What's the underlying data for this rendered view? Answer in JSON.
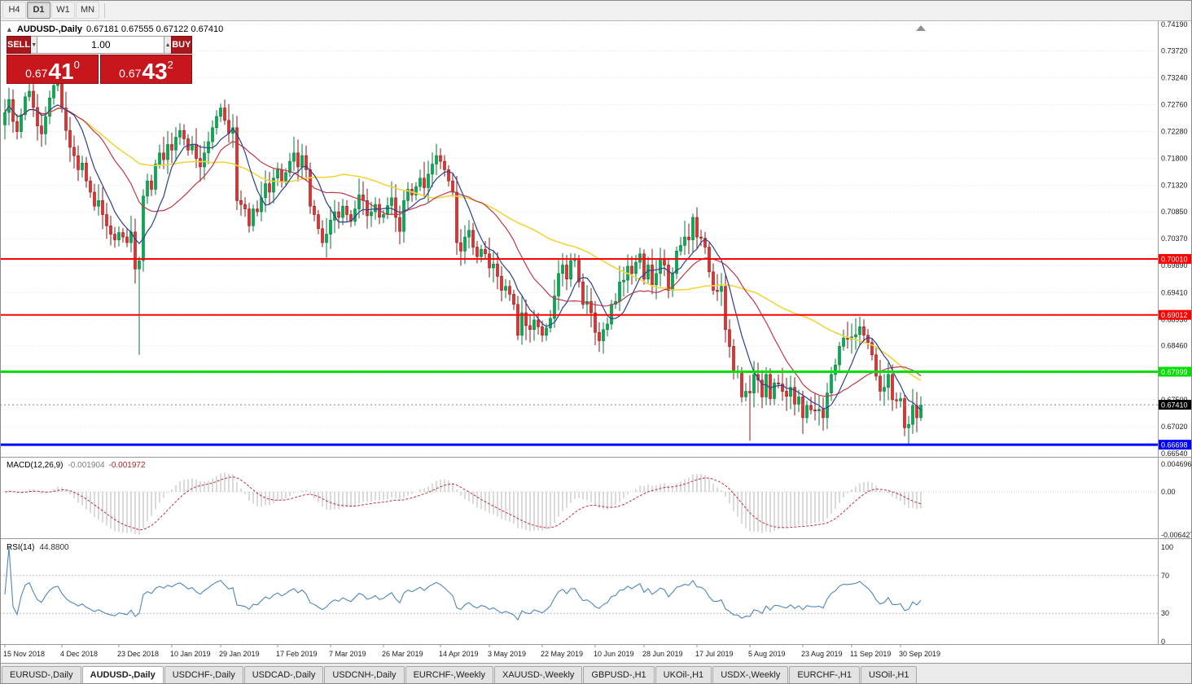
{
  "toolbar": {
    "timeframes": [
      {
        "label": "H4",
        "active": false
      },
      {
        "label": "D1",
        "active": true
      },
      {
        "label": "W1",
        "active": false
      },
      {
        "label": "MN",
        "active": false
      }
    ]
  },
  "icons": {
    "panel_toggle": "▲",
    "volume_down": "▼",
    "volume_up": "▲"
  },
  "chart": {
    "title": {
      "symbol": "AUDUSD-,Daily",
      "ohlc": "0.67181 0.67555 0.67122 0.67410"
    },
    "one_click": {
      "sell_label": "SELL",
      "buy_label": "BUY",
      "volume": "1.00",
      "sell_price": {
        "prefix": "0.67",
        "main": "41",
        "sup": "0"
      },
      "buy_price": {
        "prefix": "0.67",
        "main": "43",
        "sup": "2"
      }
    },
    "macd_panel": {
      "name": "MACD(12,26,9)",
      "value_main": "-0.001904",
      "value_signal": "-0.001972"
    },
    "rsi_panel": {
      "name": "RSI(14)",
      "value": "44.8800"
    }
  },
  "chart_data": {
    "type": "candlestick",
    "symbol": "AUDUSD-",
    "timeframe": "Daily",
    "current_bar": {
      "open": 0.67181,
      "high": 0.67555,
      "low": 0.67122,
      "close": 0.6741
    },
    "price_axis": {
      "ticks": [
        "0.74190",
        "0.73720",
        "0.73240",
        "0.72760",
        "0.72280",
        "0.71800",
        "0.71320",
        "0.70850",
        "0.70370",
        "0.69890",
        "0.69410",
        "0.68930",
        "0.68460",
        "0.67980",
        "0.67500",
        "0.67020",
        "0.66540"
      ]
    },
    "first_open": 0.724,
    "closes": [
      0.7262,
      0.7285,
      0.7246,
      0.7228,
      0.7258,
      0.729,
      0.73,
      0.7271,
      0.7238,
      0.7224,
      0.7255,
      0.7288,
      0.731,
      0.7318,
      0.727,
      0.723,
      0.72,
      0.7185,
      0.716,
      0.7172,
      0.714,
      0.712,
      0.7095,
      0.7105,
      0.708,
      0.706,
      0.7045,
      0.7035,
      0.7048,
      0.704,
      0.703,
      0.7049,
      0.6983,
      0.6998,
      0.7113,
      0.714,
      0.7125,
      0.717,
      0.719,
      0.7178,
      0.7205,
      0.7195,
      0.7218,
      0.723,
      0.7215,
      0.7195,
      0.7205,
      0.718,
      0.7165,
      0.719,
      0.721,
      0.7235,
      0.7255,
      0.727,
      0.7248,
      0.7225,
      0.7235,
      0.7105,
      0.7098,
      0.709,
      0.706,
      0.709,
      0.7085,
      0.711,
      0.7135,
      0.712,
      0.7145,
      0.716,
      0.714,
      0.7155,
      0.7175,
      0.719,
      0.7165,
      0.7185,
      0.716,
      0.7095,
      0.708,
      0.7055,
      0.703,
      0.7045,
      0.707,
      0.7085,
      0.7075,
      0.7095,
      0.708,
      0.7068,
      0.709,
      0.7115,
      0.7105,
      0.7078,
      0.7085,
      0.7098,
      0.7075,
      0.708,
      0.7096,
      0.711,
      0.7075,
      0.705,
      0.7105,
      0.7125,
      0.7115,
      0.713,
      0.7145,
      0.7128,
      0.7152,
      0.717,
      0.7185,
      0.7175,
      0.716,
      0.714,
      0.712,
      0.703,
      0.7015,
      0.704,
      0.7052,
      0.7022,
      0.7005,
      0.7018,
      0.701,
      0.6985,
      0.6992,
      0.697,
      0.6945,
      0.6952,
      0.6938,
      0.692,
      0.6865,
      0.6905,
      0.6882,
      0.6875,
      0.6892,
      0.688,
      0.6865,
      0.6878,
      0.6895,
      0.6935,
      0.6975,
      0.699,
      0.6965,
      0.6998,
      0.7,
      0.696,
      0.692,
      0.6925,
      0.6905,
      0.687,
      0.6855,
      0.6875,
      0.6885,
      0.692,
      0.6925,
      0.696,
      0.6963,
      0.6988,
      0.6975,
      0.6995,
      0.701,
      0.6965,
      0.699,
      0.6955,
      0.6975,
      0.7,
      0.699,
      0.6945,
      0.6975,
      0.7015,
      0.7025,
      0.704,
      0.7035,
      0.7075,
      0.704,
      0.7038,
      0.7022,
      0.6978,
      0.6945,
      0.6943,
      0.6952,
      0.6875,
      0.6845,
      0.68,
      0.68,
      0.6755,
      0.6765,
      0.6762,
      0.6795,
      0.6785,
      0.6755,
      0.6795,
      0.6752,
      0.678,
      0.6778,
      0.6765,
      0.6756,
      0.6772,
      0.6742,
      0.6755,
      0.6718,
      0.674,
      0.6732,
      0.673,
      0.6733,
      0.6718,
      0.6762,
      0.6795,
      0.6812,
      0.6845,
      0.686,
      0.6858,
      0.6862,
      0.6866,
      0.688,
      0.6865,
      0.6852,
      0.683,
      0.6792,
      0.6765,
      0.6772,
      0.6795,
      0.675,
      0.6748,
      0.6752,
      0.67,
      0.6706,
      0.674,
      0.6718,
      0.6741
    ],
    "wick_high_pattern": [
      0.0013,
      0.0024,
      0.0008,
      0.0018,
      0.0029,
      0.0011,
      0.0021,
      0.0015
    ],
    "wick_low_pattern": [
      0.002,
      0.001,
      0.0026,
      0.0014,
      0.0008,
      0.0023,
      0.0012,
      0.0017
    ],
    "overrides": {
      "13": {
        "h": 0.7322
      },
      "33": {
        "l": 0.683,
        "h": 0.7005
      },
      "34": {
        "h": 0.7125
      },
      "57": {
        "l": 0.7088
      },
      "79": {
        "l": 0.7003
      },
      "106": {
        "h": 0.7206
      },
      "111": {
        "l": 0.7008
      },
      "126": {
        "l": 0.6856
      },
      "147": {
        "l": 0.6832
      },
      "169": {
        "h": 0.7082
      },
      "183": {
        "l": 0.6677
      },
      "196": {
        "l": 0.6689
      },
      "209": {
        "h": 0.6895
      },
      "221": {
        "l": 0.6685
      },
      "222": {
        "l": 0.667
      },
      "225": {
        "h": 0.6756,
        "l": 0.6712
      }
    },
    "date_labels": [
      {
        "label": "15 Nov 2018",
        "index": 0
      },
      {
        "label": "4 Dec 2018",
        "index": 14
      },
      {
        "label": "23 Dec 2018",
        "index": 28
      },
      {
        "label": "10 Jan 2019",
        "index": 41
      },
      {
        "label": "29 Jan 2019",
        "index": 53
      },
      {
        "label": "17 Feb 2019",
        "index": 67
      },
      {
        "label": "7 Mar 2019",
        "index": 80
      },
      {
        "label": "26 Mar 2019",
        "index": 93
      },
      {
        "label": "14 Apr 2019",
        "index": 107
      },
      {
        "label": "3 May 2019",
        "index": 119
      },
      {
        "label": "22 May 2019",
        "index": 132
      },
      {
        "label": "10 Jun 2019",
        "index": 145
      },
      {
        "label": "28 Jun 2019",
        "index": 157
      },
      {
        "label": "17 Jul 2019",
        "index": 170
      },
      {
        "label": "5 Aug 2019",
        "index": 183
      },
      {
        "label": "23 Aug 2019",
        "index": 196
      },
      {
        "label": "11 Sep 2019",
        "index": 208
      },
      {
        "label": "30 Sep 2019",
        "index": 220
      }
    ],
    "hlines": [
      {
        "price": 0.7001,
        "label": "0.70010",
        "color": "#FF0000",
        "width": 2
      },
      {
        "price": 0.69012,
        "label": "0.69012",
        "color": "#FF0000",
        "width": 2
      },
      {
        "price": 0.67999,
        "label": "0.67999",
        "color": "#00DF00",
        "width": 3
      },
      {
        "price": 0.66698,
        "label": "0.66698",
        "color": "#0000FF",
        "width": 3
      }
    ],
    "current_price": {
      "value": 0.6741,
      "label": "0.67410"
    },
    "moving_averages": [
      {
        "period": 50,
        "color": "#F2D43C",
        "width": 1.6
      },
      {
        "period": 20,
        "color": "#C03848",
        "width": 1.2
      },
      {
        "period": 8,
        "color": "#2B3F91",
        "width": 1.2
      }
    ],
    "macd": {
      "fast": 12,
      "slow": 26,
      "signal": 9,
      "axis_max": "0.004696",
      "axis_zero": "0.00",
      "axis_min": "-0.006427",
      "hist_color": "#B4B4B4",
      "signal_color": "#C03040"
    },
    "rsi": {
      "period": 14,
      "levels": [
        100,
        70,
        30,
        0
      ],
      "level_lines": [
        70,
        30
      ],
      "line_color": "#4F86B8"
    },
    "colors": {
      "up": "#00B050",
      "up_border": "#007A38",
      "down": "#E53030",
      "down_border": "#8F1616",
      "grid": "#E4E4E4",
      "axis_text": "#1A1A1A",
      "bid_label_bg": "#000000"
    }
  },
  "tabs": {
    "items": [
      {
        "label": "EURUSD-,Daily",
        "active": false
      },
      {
        "label": "AUDUSD-,Daily",
        "active": true
      },
      {
        "label": "USDCHF-,Daily",
        "active": false
      },
      {
        "label": "USDCAD-,Daily",
        "active": false
      },
      {
        "label": "USDCNH-,Daily",
        "active": false
      },
      {
        "label": "EURCHF-,Weekly",
        "active": false
      },
      {
        "label": "XAUUSD-,Weekly",
        "active": false
      },
      {
        "label": "GBPUSD-,H1",
        "active": false
      },
      {
        "label": "UKOil-,H1",
        "active": false
      },
      {
        "label": "USDX-,Weekly",
        "active": false
      },
      {
        "label": "EURCHF-,H1",
        "active": false
      },
      {
        "label": "USOil-,H1",
        "active": false
      }
    ]
  }
}
